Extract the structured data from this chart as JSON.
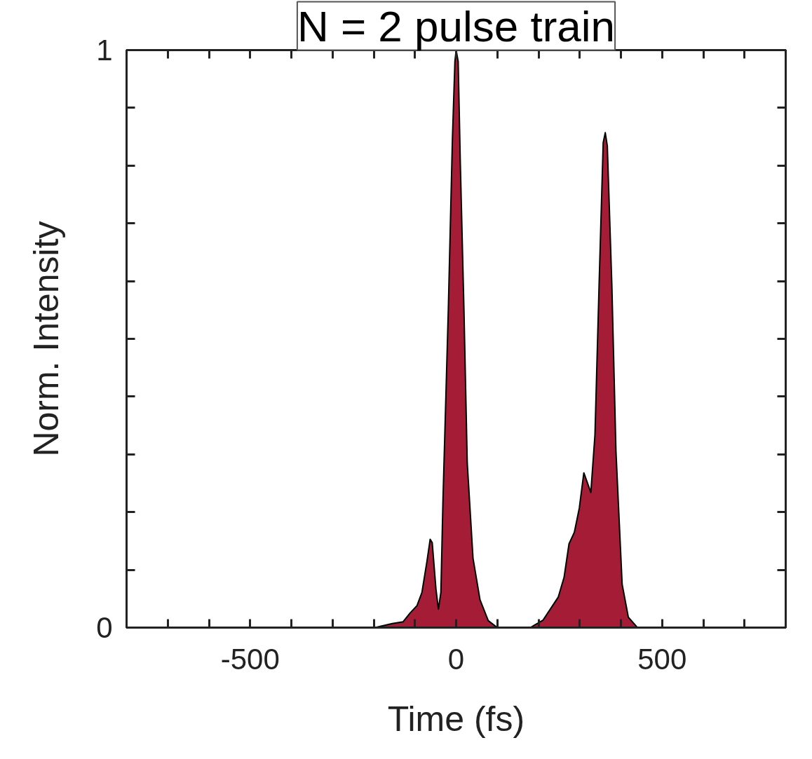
{
  "chart_data": {
    "type": "area",
    "title": "N = 2 pulse train",
    "xlabel": "Time (fs)",
    "ylabel": "Norm. Intensity",
    "x": [
      -800,
      -197,
      -155,
      -129,
      -112,
      -95,
      -83,
      -71,
      -63,
      -58,
      -49,
      -43,
      -37,
      -32,
      -19,
      -9,
      -3,
      0,
      5,
      10,
      19,
      27,
      41,
      58,
      78,
      100,
      180,
      211,
      248,
      262,
      274,
      287,
      299,
      310,
      320,
      327,
      337,
      347,
      357,
      362,
      367,
      378,
      388,
      403,
      418,
      440,
      800
    ],
    "series": [
      {
        "color": "#a51c36",
        "values": [
          0,
          0,
          0.007,
          0.01,
          0.025,
          0.038,
          0.061,
          0.114,
          0.153,
          0.147,
          0.067,
          0.032,
          0.061,
          0.22,
          0.55,
          0.847,
          0.98,
          1.0,
          0.98,
          0.81,
          0.55,
          0.285,
          0.12,
          0.048,
          0.012,
          0,
          0,
          0.013,
          0.053,
          0.087,
          0.145,
          0.165,
          0.207,
          0.268,
          0.248,
          0.234,
          0.334,
          0.593,
          0.84,
          0.857,
          0.834,
          0.593,
          0.305,
          0.075,
          0.018,
          0,
          0
        ]
      }
    ],
    "xlim": [
      -800,
      800
    ],
    "ylim": [
      0,
      1
    ],
    "xticks": [
      {
        "value": -800,
        "label": null
      },
      {
        "value": -700,
        "label": null
      },
      {
        "value": -600,
        "label": null
      },
      -500,
      {
        "value": -400,
        "label": null
      },
      {
        "value": -300,
        "label": null
      },
      {
        "value": -200,
        "label": null
      },
      {
        "value": -100,
        "label": null
      },
      0,
      {
        "value": 100,
        "label": null
      },
      {
        "value": 200,
        "label": null
      },
      {
        "value": 300,
        "label": null
      },
      {
        "value": 400,
        "label": null
      },
      500,
      {
        "value": 600,
        "label": null
      },
      {
        "value": 700,
        "label": null
      },
      {
        "value": 800,
        "label": null
      }
    ],
    "yticks": [
      0,
      {
        "value": 0.1,
        "label": null
      },
      {
        "value": 0.2,
        "label": null
      },
      {
        "value": 0.3,
        "label": null
      },
      {
        "value": 0.4,
        "label": null
      },
      {
        "value": 0.5,
        "label": null
      },
      {
        "value": 0.6,
        "label": null
      },
      {
        "value": 0.7,
        "label": null
      },
      {
        "value": 0.8,
        "label": null
      },
      {
        "value": 0.9,
        "label": null
      },
      1
    ],
    "grid": false
  }
}
